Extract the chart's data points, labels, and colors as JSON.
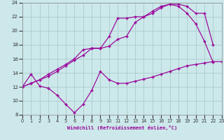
{
  "xlabel": "Windchill (Refroidissement éolien,°C)",
  "bg_color": "#cce8ea",
  "grid_color": "#aacccc",
  "line_color": "#990099",
  "xmin": 0,
  "xmax": 23,
  "ymin": 8,
  "ymax": 24,
  "line1_x": [
    0,
    1,
    2,
    3,
    4,
    5,
    6,
    7,
    8,
    9,
    10,
    11,
    12,
    13,
    14,
    15,
    16,
    17,
    18,
    19,
    20,
    21,
    22,
    23
  ],
  "line1_y": [
    12.0,
    13.8,
    12.1,
    11.8,
    10.8,
    9.5,
    8.3,
    9.5,
    11.5,
    14.2,
    13.0,
    12.5,
    12.5,
    12.8,
    13.1,
    13.4,
    13.8,
    14.2,
    14.6,
    15.0,
    15.2,
    15.4,
    15.6,
    15.6
  ],
  "line2_x": [
    0,
    1,
    2,
    3,
    4,
    5,
    6,
    7,
    8,
    9,
    10,
    11,
    12,
    13,
    14,
    15,
    16,
    17,
    18,
    19,
    20,
    21,
    22
  ],
  "line2_y": [
    12.0,
    12.5,
    13.0,
    13.8,
    14.5,
    15.2,
    16.0,
    17.3,
    17.5,
    17.5,
    19.2,
    21.8,
    21.8,
    22.0,
    22.0,
    22.5,
    23.3,
    23.8,
    23.8,
    23.5,
    22.5,
    22.5,
    18.0
  ],
  "line3_x": [
    0,
    1,
    2,
    3,
    4,
    5,
    6,
    7,
    8,
    9,
    10,
    11,
    12,
    13,
    14,
    15,
    16,
    17,
    18,
    19,
    20,
    21,
    22
  ],
  "line3_y": [
    12.0,
    12.5,
    13.0,
    13.5,
    14.2,
    15.0,
    15.8,
    16.5,
    17.5,
    17.5,
    17.8,
    18.8,
    19.2,
    21.2,
    22.0,
    22.8,
    23.5,
    23.8,
    23.5,
    22.5,
    21.0,
    18.5,
    15.5
  ]
}
